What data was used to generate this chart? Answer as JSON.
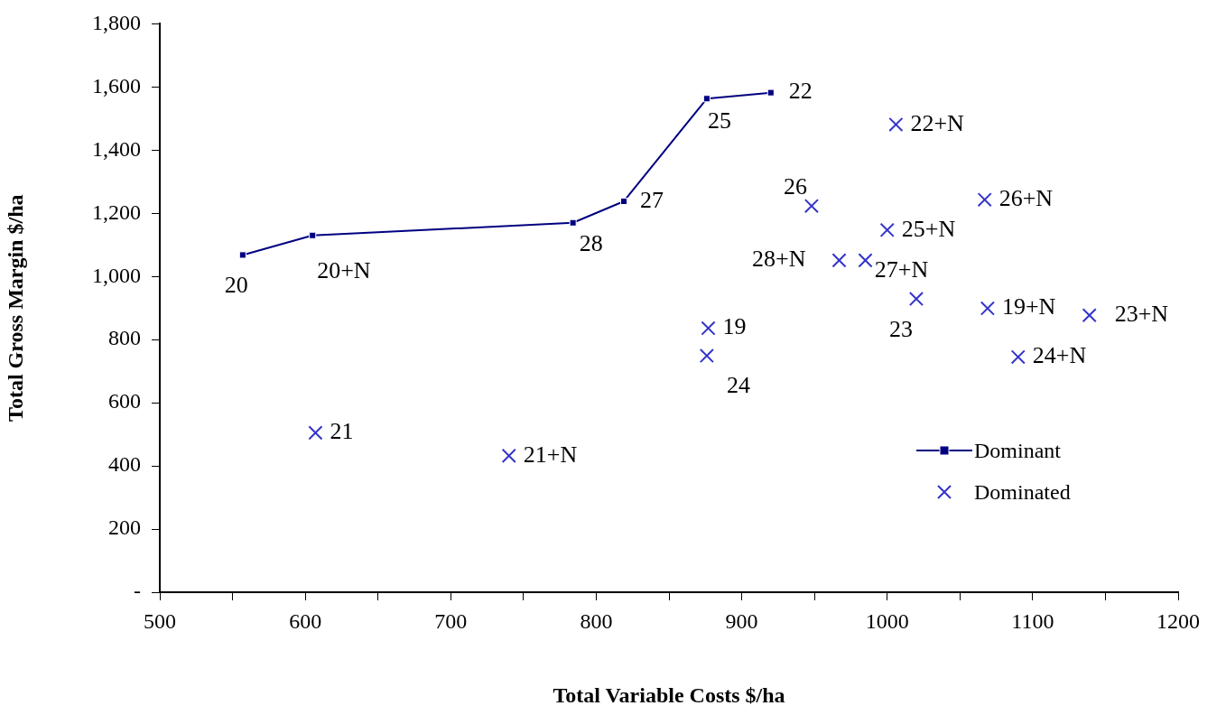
{
  "chart_data": {
    "type": "scatter",
    "xlabel": "Total Variable Costs $/ha",
    "ylabel": "Total Gross Margin $/ha",
    "xlim": [
      500,
      1200
    ],
    "xticks": [
      500,
      {
        "value": 550,
        "label": null
      },
      600,
      {
        "value": 650,
        "label": null
      },
      700,
      {
        "value": 750,
        "label": null
      },
      800,
      {
        "value": 850,
        "label": null
      },
      900,
      {
        "value": 950,
        "label": null
      },
      1000,
      {
        "value": 1050,
        "label": null
      },
      1100,
      {
        "value": 1150,
        "label": null
      },
      1200
    ],
    "ylim": [
      0,
      1800
    ],
    "yticks": [
      {
        "value": 0,
        "label": "-"
      },
      200,
      400,
      600,
      800,
      {
        "value": 1000,
        "label": "1,000"
      },
      {
        "value": 1200,
        "label": "1,200"
      },
      {
        "value": 1400,
        "label": "1,400"
      },
      {
        "value": 1600,
        "label": "1,600"
      },
      {
        "value": 1800,
        "label": "1,800"
      }
    ],
    "grid": false,
    "legend": "bottom right",
    "series": [
      {
        "name": "Dominant",
        "type": "line",
        "color": "#000080",
        "marker": "square",
        "line_style": "solid",
        "x": [
          557,
          605,
          784,
          819,
          876,
          920
        ],
        "values": [
          1068,
          1130,
          1170,
          1238,
          1563,
          1582
        ]
      },
      {
        "name": "Dominated",
        "type": "scatter",
        "color": "#3333cc",
        "marker": "cross",
        "x": [
          1006,
          948,
          1067,
          1000,
          967,
          985,
          1020,
          1069,
          1139,
          1090,
          877,
          876,
          607,
          740
        ],
        "values": [
          1481,
          1223,
          1243,
          1147,
          1051,
          1051,
          929,
          899,
          877,
          745,
          836,
          749,
          505,
          432
        ]
      }
    ],
    "annotations": [
      {
        "text": "20",
        "x": 557,
        "y": 1068
      },
      {
        "text": "20+N",
        "x": 605,
        "y": 1130
      },
      {
        "text": "28",
        "x": 784,
        "y": 1170
      },
      {
        "text": "27",
        "x": 819,
        "y": 1238
      },
      {
        "text": "25",
        "x": 876,
        "y": 1563
      },
      {
        "text": "22",
        "x": 920,
        "y": 1582
      },
      {
        "text": "22+N",
        "x": 1006,
        "y": 1481
      },
      {
        "text": "26",
        "x": 948,
        "y": 1223
      },
      {
        "text": "26+N",
        "x": 1067,
        "y": 1243
      },
      {
        "text": "25+N",
        "x": 1000,
        "y": 1147
      },
      {
        "text": "28+N",
        "x": 967,
        "y": 1051
      },
      {
        "text": "27+N",
        "x": 985,
        "y": 1051
      },
      {
        "text": "23",
        "x": 1020,
        "y": 929
      },
      {
        "text": "19+N",
        "x": 1069,
        "y": 899
      },
      {
        "text": "23+N",
        "x": 1139,
        "y": 877
      },
      {
        "text": "24+N",
        "x": 1090,
        "y": 745
      },
      {
        "text": "19",
        "x": 877,
        "y": 836
      },
      {
        "text": "24",
        "x": 876,
        "y": 749
      },
      {
        "text": "21",
        "x": 607,
        "y": 505
      },
      {
        "text": "21+N",
        "x": 740,
        "y": 432
      }
    ]
  }
}
